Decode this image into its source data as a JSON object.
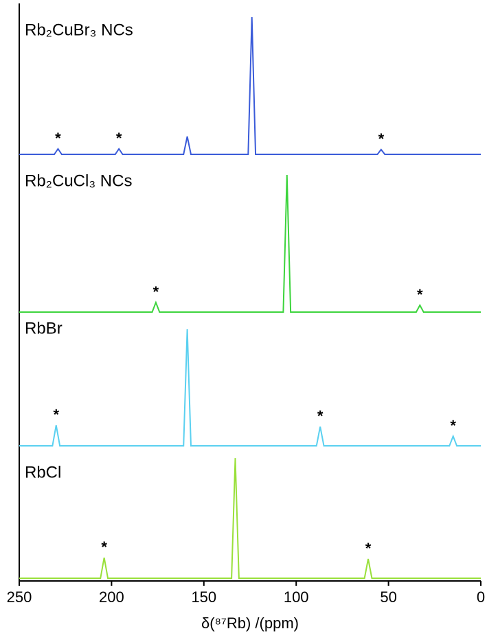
{
  "chart_data": {
    "type": "line",
    "xlabel": "δ(⁸⁷Rb) /(ppm)",
    "xlim": [
      250,
      0
    ],
    "xticks": [
      250,
      200,
      150,
      100,
      50,
      0
    ],
    "series": [
      {
        "name": "Rb₂CuBr₃ NCs",
        "color": "#3a5bd9",
        "x": [
          250,
          231,
          229,
          227,
          198,
          196,
          194,
          161,
          159,
          157,
          126,
          124,
          122,
          56,
          54,
          52,
          0
        ],
        "values": [
          0,
          0,
          0.04,
          0,
          0,
          0.04,
          0,
          0,
          0.13,
          0,
          0,
          1.0,
          0,
          0,
          0.035,
          0,
          0
        ],
        "annotations": [
          {
            "text": "*",
            "x": 229
          },
          {
            "text": "*",
            "x": 196
          },
          {
            "text": "*",
            "x": 54
          }
        ]
      },
      {
        "name": "Rb₂CuCl₃ NCs",
        "color": "#3cd43c",
        "x": [
          250,
          178,
          176,
          174,
          107,
          105,
          103,
          35,
          33,
          31,
          0
        ],
        "values": [
          0,
          0,
          0.07,
          0,
          0,
          1.0,
          0,
          0,
          0.05,
          0,
          0
        ],
        "annotations": [
          {
            "text": "*",
            "x": 176
          },
          {
            "text": "*",
            "x": 33
          }
        ]
      },
      {
        "name": "RbBr",
        "color": "#5ad0f0",
        "x": [
          250,
          232,
          230,
          228,
          161,
          159,
          157,
          89,
          87,
          85,
          17,
          15,
          13,
          0
        ],
        "values": [
          0,
          0,
          0.15,
          0,
          0,
          0.85,
          0,
          0,
          0.14,
          0,
          0,
          0.07,
          0,
          0
        ],
        "annotations": [
          {
            "text": "*",
            "x": 230
          },
          {
            "text": "*",
            "x": 87
          },
          {
            "text": "*",
            "x": 15
          }
        ]
      },
      {
        "name": "RbCl",
        "color": "#99e03a",
        "x": [
          250,
          206,
          204,
          202,
          135,
          133,
          131,
          63,
          61,
          59,
          0
        ],
        "values": [
          0,
          0,
          0.15,
          0,
          0,
          0.875,
          0,
          0,
          0.14,
          0,
          0
        ],
        "annotations": [
          {
            "text": "*",
            "x": 204
          },
          {
            "text": "*",
            "x": 61
          }
        ]
      }
    ]
  }
}
